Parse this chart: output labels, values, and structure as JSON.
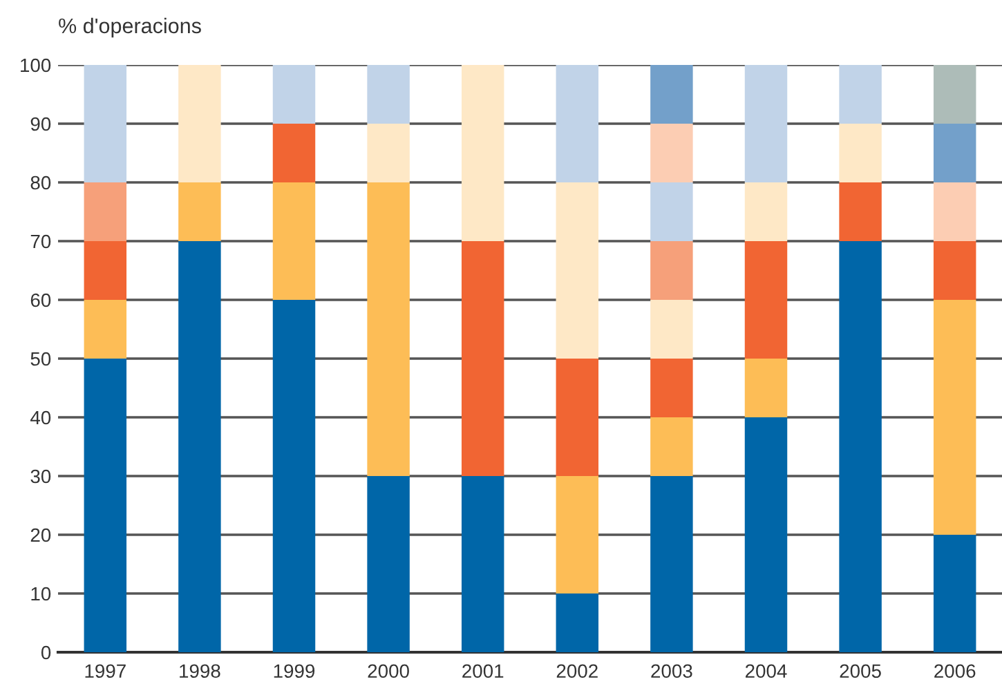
{
  "chart_data": {
    "type": "bar",
    "stacked": true,
    "ylabel": "% d'operacions",
    "categories": [
      "1997",
      "1998",
      "1999",
      "2000",
      "2001",
      "2002",
      "2003",
      "2004",
      "2005",
      "2006"
    ],
    "series": [
      {
        "color": "#0066a8",
        "values": [
          50,
          70,
          60,
          30,
          30,
          10,
          30,
          40,
          70,
          20
        ]
      },
      {
        "color": "#fdbd56",
        "values": [
          10,
          10,
          20,
          50,
          null,
          20,
          10,
          10,
          null,
          40
        ]
      },
      {
        "color": "#f16533",
        "values": [
          10,
          null,
          10,
          null,
          40,
          20,
          10,
          20,
          10,
          10
        ]
      },
      {
        "color": "#fee8c6",
        "values": [
          null,
          20,
          null,
          10,
          30,
          30,
          10,
          10,
          10,
          null
        ]
      },
      {
        "color": "#f6a07a",
        "values": [
          10,
          null,
          null,
          null,
          null,
          null,
          10,
          null,
          null,
          null
        ]
      },
      {
        "color": "#c1d3e8",
        "values": [
          20,
          null,
          10,
          10,
          null,
          20,
          10,
          20,
          10,
          null
        ]
      },
      {
        "color": "#fccdb3",
        "values": [
          null,
          null,
          null,
          null,
          null,
          null,
          10,
          null,
          null,
          10
        ]
      },
      {
        "color": "#73a0ca",
        "values": [
          null,
          null,
          null,
          null,
          null,
          null,
          10,
          null,
          null,
          10
        ]
      },
      {
        "color": "#adbcb8",
        "values": [
          null,
          null,
          null,
          null,
          null,
          null,
          null,
          null,
          null,
          10
        ]
      }
    ],
    "ylim": [
      0,
      100
    ],
    "yticks": [
      0,
      10,
      20,
      30,
      40,
      50,
      60,
      70,
      80,
      90,
      100
    ],
    "grid": "y",
    "legend": false
  }
}
